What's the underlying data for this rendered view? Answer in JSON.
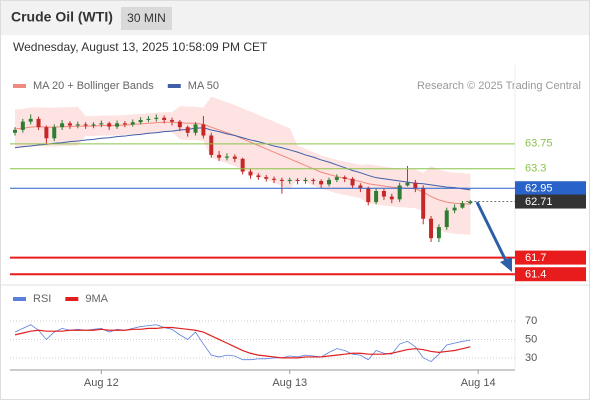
{
  "chart_data": [
    {
      "type": "candlestick",
      "title": "Crude Oil (WTI)",
      "interval": "30 MIN",
      "subtitle": "Wednesday, August 13, 2025 10:58:09 PM CET",
      "credit": "Research © 2025 Trading Central",
      "categories": [
        null,
        null,
        null,
        null,
        null,
        null,
        null,
        null,
        null,
        null,
        null,
        "Aug 12",
        null,
        null,
        null,
        null,
        null,
        null,
        null,
        null,
        null,
        null,
        null,
        null,
        null,
        null,
        null,
        null,
        null,
        null,
        null,
        null,
        null,
        null,
        null,
        "Aug 13",
        null,
        null,
        null,
        null,
        null,
        null,
        null,
        null,
        null,
        null,
        null,
        null,
        null,
        null,
        null,
        null,
        null,
        null,
        null,
        null,
        null,
        null,
        null,
        "Aug 14"
      ],
      "open": [
        63.95,
        64.0,
        64.15,
        64.2,
        64.05,
        63.85,
        64.05,
        64.12,
        64.08,
        64.1,
        64.08,
        64.1,
        64.12,
        64.06,
        64.12,
        64.1,
        64.14,
        64.18,
        64.2,
        64.22,
        64.18,
        64.15,
        64.05,
        63.95,
        64.1,
        63.9,
        63.55,
        63.5,
        63.52,
        63.48,
        63.25,
        63.18,
        63.15,
        63.12,
        63.1,
        63.08,
        63.1,
        63.08,
        63.1,
        63.08,
        63.02,
        63.1,
        63.15,
        63.12,
        63.0,
        62.95,
        62.7,
        62.9,
        62.8,
        62.75,
        63.0,
        63.05,
        62.95,
        62.4,
        62.05,
        62.25,
        62.55,
        62.6,
        62.68,
        null
      ],
      "high": [
        64.05,
        64.2,
        64.28,
        64.24,
        64.08,
        64.1,
        64.18,
        64.16,
        64.15,
        64.14,
        64.14,
        64.17,
        64.15,
        64.17,
        64.16,
        64.19,
        64.23,
        64.25,
        64.28,
        64.26,
        64.22,
        64.18,
        64.08,
        64.14,
        64.25,
        63.95,
        63.62,
        63.58,
        63.56,
        63.5,
        63.3,
        63.22,
        63.19,
        63.16,
        63.14,
        63.14,
        63.13,
        63.14,
        63.13,
        63.11,
        63.14,
        63.2,
        63.18,
        63.15,
        63.04,
        62.98,
        62.95,
        62.94,
        62.85,
        63.05,
        63.35,
        63.1,
        63.0,
        62.45,
        62.3,
        62.6,
        62.66,
        62.72,
        62.74,
        null
      ],
      "low": [
        63.9,
        63.95,
        64.1,
        64.0,
        63.75,
        63.8,
        64.0,
        64.02,
        64.03,
        64.02,
        64.03,
        64.05,
        64.0,
        64.02,
        64.05,
        64.06,
        64.1,
        64.14,
        64.15,
        64.12,
        64.08,
        63.98,
        63.88,
        63.9,
        63.85,
        63.5,
        63.44,
        63.45,
        63.42,
        63.2,
        63.12,
        63.1,
        63.07,
        63.04,
        62.85,
        63.03,
        63.02,
        63.03,
        63.02,
        62.96,
        62.98,
        63.06,
        63.06,
        62.95,
        62.88,
        62.64,
        62.66,
        62.74,
        62.68,
        62.7,
        62.98,
        62.88,
        62.3,
        61.98,
        61.98,
        62.2,
        62.5,
        62.58,
        62.66,
        null
      ],
      "close": [
        64.0,
        64.15,
        64.2,
        64.05,
        63.85,
        64.05,
        64.12,
        64.08,
        64.1,
        64.08,
        64.1,
        64.12,
        64.06,
        64.12,
        64.1,
        64.14,
        64.18,
        64.2,
        64.22,
        64.18,
        64.15,
        64.05,
        63.95,
        64.1,
        63.9,
        63.55,
        63.5,
        63.52,
        63.48,
        63.25,
        63.18,
        63.15,
        63.12,
        63.1,
        63.08,
        63.1,
        63.08,
        63.1,
        63.08,
        63.02,
        63.1,
        63.15,
        63.12,
        63.0,
        62.95,
        62.7,
        62.9,
        62.8,
        62.75,
        63.0,
        63.05,
        62.95,
        62.4,
        62.05,
        62.25,
        62.55,
        62.6,
        62.68,
        62.71,
        null
      ],
      "up_color": "#2e7d32",
      "down_color": "#c62828",
      "overlays": [
        {
          "name": "MA 20 + Bollinger Bands",
          "color": "#f08a80",
          "band_color": "#fde3e1",
          "values": [
            64.02,
            64.03,
            64.05,
            64.06,
            64.05,
            64.05,
            64.06,
            64.06,
            64.07,
            64.07,
            64.07,
            64.08,
            64.08,
            64.08,
            64.09,
            64.1,
            64.11,
            64.12,
            64.13,
            64.14,
            64.14,
            64.13,
            64.12,
            64.12,
            64.1,
            64.05,
            64.0,
            63.95,
            63.9,
            63.84,
            63.78,
            63.72,
            63.66,
            63.6,
            63.54,
            63.48,
            63.42,
            63.36,
            63.3,
            63.24,
            63.2,
            63.16,
            63.13,
            63.1,
            63.07,
            63.03,
            63.01,
            62.99,
            62.97,
            62.96,
            62.95,
            62.94,
            62.88,
            62.8,
            62.74,
            62.7,
            62.68,
            62.67,
            62.66,
            null
          ],
          "upper": [
            64.37,
            64.38,
            64.4,
            64.41,
            64.4,
            64.4,
            64.41,
            64.41,
            64.42,
            64.25,
            64.25,
            64.26,
            64.26,
            64.26,
            64.27,
            64.28,
            64.29,
            64.3,
            64.31,
            64.32,
            64.32,
            64.43,
            64.42,
            64.42,
            64.4,
            64.6,
            64.55,
            64.5,
            64.45,
            64.39,
            64.33,
            64.27,
            64.21,
            64.15,
            64.09,
            64.03,
            63.72,
            63.66,
            63.6,
            63.54,
            63.5,
            63.46,
            63.43,
            63.4,
            63.37,
            63.38,
            63.36,
            63.34,
            63.32,
            63.31,
            63.3,
            63.29,
            63.23,
            63.35,
            63.29,
            63.25,
            63.23,
            63.22,
            63.21,
            null
          ],
          "lower": [
            63.67,
            63.68,
            63.7,
            63.71,
            63.7,
            63.7,
            63.71,
            63.71,
            63.72,
            63.89,
            63.89,
            63.9,
            63.9,
            63.9,
            63.91,
            63.92,
            63.93,
            63.94,
            63.95,
            63.96,
            63.96,
            63.83,
            63.82,
            63.82,
            63.8,
            63.5,
            63.45,
            63.4,
            63.35,
            63.29,
            63.23,
            63.17,
            63.11,
            63.05,
            62.99,
            62.93,
            63.12,
            63.06,
            63.0,
            62.94,
            62.9,
            62.86,
            62.83,
            62.8,
            62.77,
            62.68,
            62.66,
            62.64,
            62.62,
            62.61,
            62.6,
            62.59,
            62.53,
            62.25,
            62.19,
            62.15,
            62.13,
            62.12,
            62.11,
            null
          ]
        },
        {
          "name": "MA 50",
          "color": "#3f5fa8",
          "values": [
            63.68,
            63.7,
            63.71,
            63.73,
            63.74,
            63.76,
            63.77,
            63.79,
            63.8,
            63.82,
            63.83,
            63.85,
            63.86,
            63.88,
            63.89,
            63.91,
            63.92,
            63.94,
            63.95,
            63.97,
            63.98,
            64.0,
            64.01,
            64.03,
            64.04,
            64.0,
            63.97,
            63.93,
            63.9,
            63.86,
            63.82,
            63.79,
            63.75,
            63.71,
            63.68,
            63.64,
            63.6,
            63.55,
            63.51,
            63.46,
            63.42,
            63.37,
            63.32,
            63.27,
            63.23,
            63.18,
            63.14,
            63.12,
            63.1,
            63.08,
            63.06,
            63.04,
            63.03,
            63.01,
            62.99,
            62.97,
            62.96,
            62.94,
            62.92,
            null
          ]
        }
      ],
      "levels": [
        {
          "value": 63.75,
          "color": "#8bc34a",
          "label": "text",
          "line": "solid",
          "width": 1
        },
        {
          "value": 63.3,
          "color": "#8bc34a",
          "label": "text",
          "line": "solid",
          "width": 1
        },
        {
          "value": 62.95,
          "color": "#2962c8",
          "label": "box",
          "line": "solid",
          "width": 1
        },
        {
          "value": 62.71,
          "color": "#333333",
          "label": "box",
          "line": "dotted",
          "width": 1
        },
        {
          "value": 61.7,
          "color": "#e81c1c",
          "label": "box",
          "line": "solid",
          "width": 2
        },
        {
          "value": 61.4,
          "color": "#e81c1c",
          "label": "box",
          "line": "solid",
          "width": 2
        }
      ],
      "ylim": [
        61.26,
        64.63
      ]
    },
    {
      "type": "line",
      "series": [
        {
          "name": "RSI",
          "color": "#5b7fde",
          "values": [
            58,
            62,
            66,
            60,
            50,
            58,
            62,
            60,
            61,
            60,
            61,
            62,
            58,
            61,
            60,
            62,
            64,
            65,
            66,
            63,
            61,
            55,
            50,
            58,
            45,
            33,
            31,
            33,
            32,
            28,
            28,
            29,
            29,
            30,
            30,
            32,
            31,
            33,
            32,
            31,
            36,
            40,
            38,
            34,
            33,
            28,
            38,
            35,
            34,
            45,
            48,
            42,
            30,
            26,
            34,
            44,
            46,
            48,
            49,
            null
          ]
        },
        {
          "name": "9MA",
          "color": "#e02020",
          "values": [
            55,
            57,
            59,
            60,
            59,
            59,
            59,
            60,
            60,
            60,
            60,
            61,
            60,
            60,
            60,
            61,
            61,
            62,
            62,
            63,
            63,
            62,
            61,
            60,
            58,
            54,
            50,
            46,
            42,
            38,
            35,
            33,
            32,
            31,
            30,
            30,
            30,
            31,
            31,
            31,
            32,
            33,
            34,
            35,
            35,
            34,
            34,
            34,
            35,
            37,
            39,
            40,
            39,
            37,
            36,
            37,
            38,
            40,
            42,
            null
          ]
        }
      ],
      "ylim": [
        19,
        82
      ],
      "yticks": [
        30,
        50,
        70
      ],
      "grid": "dotted"
    }
  ]
}
